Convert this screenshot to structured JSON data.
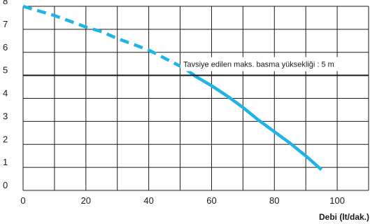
{
  "chart_data": {
    "type": "line",
    "title": "",
    "xlabel": "Debi (lt/dak.)",
    "ylabel": "",
    "xlim": [
      0,
      110
    ],
    "ylim": [
      0,
      8
    ],
    "x_ticks": [
      0,
      10,
      20,
      30,
      40,
      50,
      60,
      70,
      80,
      90,
      100,
      110
    ],
    "x_tick_labels": [
      "0",
      "",
      "20",
      "",
      "40",
      "",
      "60",
      "",
      "80",
      "",
      "100",
      ""
    ],
    "y_ticks": [
      0,
      1,
      2,
      3,
      4,
      5,
      6,
      7,
      8
    ],
    "y_tick_labels": [
      "0",
      "1",
      "2",
      "3",
      "4",
      "5",
      "6",
      "7",
      "8"
    ],
    "grid": true,
    "series": [
      {
        "style": "dashed",
        "color": "#1fb3e8",
        "x": [
          0,
          5,
          10,
          15,
          20,
          25,
          30,
          35,
          40,
          45,
          50,
          52
        ],
        "y": [
          8.0,
          7.8,
          7.6,
          7.35,
          7.1,
          6.9,
          6.6,
          6.35,
          6.1,
          5.75,
          5.4,
          5.25
        ]
      },
      {
        "style": "solid",
        "color": "#1fb3e8",
        "x": [
          52,
          55,
          60,
          65,
          70,
          75,
          80,
          85,
          90,
          95
        ],
        "y": [
          5.25,
          4.95,
          4.55,
          4.1,
          3.6,
          3.05,
          2.55,
          2.05,
          1.5,
          0.9
        ]
      }
    ],
    "reference_line": {
      "y": 5,
      "color": "#1a1a1a",
      "label": "Tavsiye edilen maks. basma yüksekliği : 5 m"
    }
  }
}
